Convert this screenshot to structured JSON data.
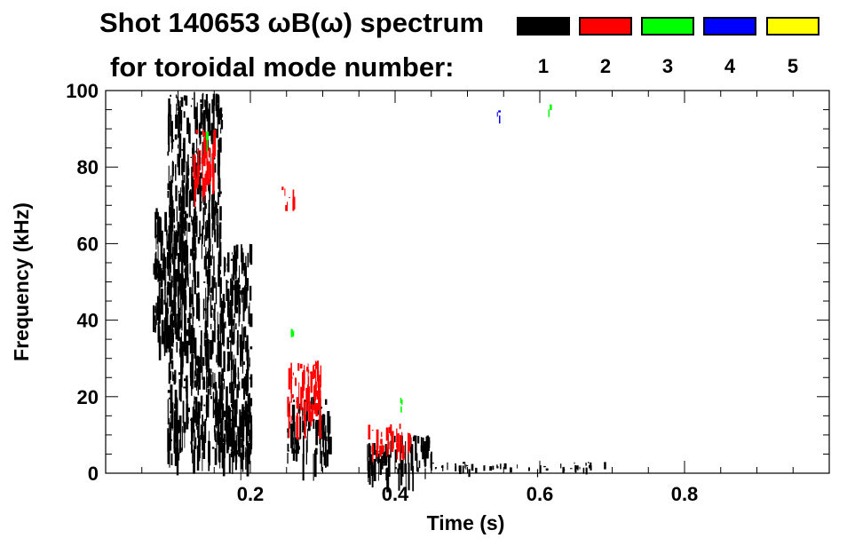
{
  "title_line1": "Shot 140653 ωB(ω) spectrum",
  "title_line2": "for toroidal mode number:",
  "legend": [
    {
      "label": "1",
      "color": "#000000"
    },
    {
      "label": "2",
      "color": "#ff0000"
    },
    {
      "label": "3",
      "color": "#00ff00"
    },
    {
      "label": "4",
      "color": "#0000ff"
    },
    {
      "label": "5",
      "color": "#ffff00"
    }
  ],
  "chart_data": {
    "type": "heatmap",
    "title": "Shot 140653 ωB(ω) spectrum",
    "subtitle": "for toroidal mode number:",
    "xlabel": "Time (s)",
    "ylabel": "Frequency (kHz)",
    "xlim": [
      0.0,
      1.0
    ],
    "ylim": [
      0,
      100
    ],
    "x_ticks": [
      0.2,
      0.4,
      0.6,
      0.8
    ],
    "x_tick_labels": [
      "0.2",
      "0.4",
      "0.6",
      "0.8"
    ],
    "y_ticks": [
      0,
      20,
      40,
      60,
      80,
      100
    ],
    "y_tick_labels": [
      "0",
      "20",
      "40",
      "60",
      "80",
      "100"
    ],
    "grid": false,
    "legend_position": "top-right",
    "series": [
      {
        "name": "1",
        "color": "#000000",
        "regions": [
          {
            "t": [
              0.065,
              0.11
            ],
            "f": [
              35,
              70
            ]
          },
          {
            "t": [
              0.085,
              0.16
            ],
            "f": [
              5,
              100
            ]
          },
          {
            "t": [
              0.16,
              0.2
            ],
            "f": [
              5,
              60
            ]
          },
          {
            "t": [
              0.15,
              0.2
            ],
            "f": [
              5,
              20
            ]
          },
          {
            "t": [
              0.25,
              0.31
            ],
            "f": [
              5,
              20
            ]
          },
          {
            "t": [
              0.36,
              0.45
            ],
            "f": [
              1,
              10
            ]
          },
          {
            "t": [
              0.45,
              0.7
            ],
            "f": [
              1,
              3
            ]
          }
        ]
      },
      {
        "name": "2",
        "color": "#ff0000",
        "regions": [
          {
            "t": [
              0.12,
              0.15
            ],
            "f": [
              75,
              90
            ]
          },
          {
            "t": [
              0.24,
              0.26
            ],
            "f": [
              70,
              75
            ]
          },
          {
            "t": [
              0.25,
              0.3
            ],
            "f": [
              15,
              30
            ]
          },
          {
            "t": [
              0.36,
              0.42
            ],
            "f": [
              7,
              13
            ]
          }
        ]
      },
      {
        "name": "3",
        "color": "#00ff00",
        "regions": [
          {
            "t": [
              0.135,
              0.14
            ],
            "f": [
              85,
              90
            ]
          },
          {
            "t": [
              0.255,
              0.26
            ],
            "f": [
              33,
              38
            ]
          },
          {
            "t": [
              0.405,
              0.41
            ],
            "f": [
              17,
              20
            ]
          },
          {
            "t": [
              0.61,
              0.615
            ],
            "f": [
              95,
              97
            ]
          }
        ]
      },
      {
        "name": "4",
        "color": "#0000ff",
        "regions": [
          {
            "t": [
              0.54,
              0.545
            ],
            "f": [
              93,
              95
            ]
          }
        ]
      },
      {
        "name": "5",
        "color": "#ffff00",
        "regions": []
      }
    ]
  }
}
